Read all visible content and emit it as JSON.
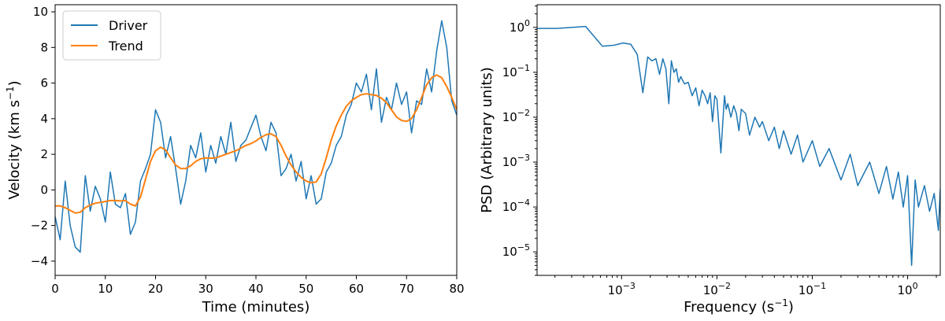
{
  "chart_data": [
    {
      "type": "line",
      "xlabel": "Time (minutes)",
      "ylabel": "Velocity (km s⁻¹)",
      "ylabel_main": "Velocity (km s",
      "ylabel_sup": "−1",
      "ylabel_close": ")",
      "xlim": [
        0,
        80
      ],
      "ylim": [
        -4.8,
        10.4
      ],
      "xticks": [
        0,
        10,
        20,
        30,
        40,
        50,
        60,
        70,
        80
      ],
      "yticks": [
        -4,
        -2,
        0,
        2,
        4,
        6,
        8,
        10
      ],
      "xtick_labels": [
        "0",
        "10",
        "20",
        "30",
        "40",
        "50",
        "60",
        "70",
        "80"
      ],
      "ytick_labels": [
        "−4",
        "−2",
        "0",
        "2",
        "4",
        "6",
        "8",
        "10"
      ],
      "legend_position": "top-left",
      "grid": false,
      "series": [
        {
          "name": "Driver",
          "color": "#1f77b4",
          "x": [
            0,
            1,
            2,
            3,
            4,
            5,
            6,
            7,
            8,
            9,
            10,
            11,
            12,
            13,
            14,
            15,
            16,
            17,
            18,
            19,
            20,
            21,
            22,
            23,
            24,
            25,
            26,
            27,
            28,
            29,
            30,
            31,
            32,
            33,
            34,
            35,
            36,
            37,
            38,
            39,
            40,
            41,
            42,
            43,
            44,
            45,
            46,
            47,
            48,
            49,
            50,
            51,
            52,
            53,
            54,
            55,
            56,
            57,
            58,
            59,
            60,
            61,
            62,
            63,
            64,
            65,
            66,
            67,
            68,
            69,
            70,
            71,
            72,
            73,
            74,
            75,
            76,
            77,
            78,
            79,
            80
          ],
          "y": [
            -1.5,
            -2.8,
            0.5,
            -2.0,
            -3.2,
            -3.5,
            0.8,
            -1.2,
            0.2,
            -0.5,
            -1.8,
            1.0,
            -0.8,
            -1.0,
            -0.2,
            -2.5,
            -1.8,
            0.5,
            1.2,
            2.0,
            4.5,
            3.8,
            1.8,
            3.0,
            1.2,
            -0.8,
            0.5,
            2.5,
            1.8,
            3.2,
            1.0,
            2.5,
            1.5,
            3.0,
            2.0,
            3.8,
            1.6,
            2.5,
            2.8,
            3.5,
            4.2,
            3.0,
            2.2,
            3.8,
            3.2,
            0.8,
            1.2,
            2.0,
            0.5,
            1.6,
            -0.5,
            0.8,
            -0.8,
            -0.5,
            1.0,
            1.5,
            2.5,
            3.0,
            4.2,
            4.8,
            6.0,
            5.5,
            6.5,
            4.5,
            6.8,
            3.8,
            5.2,
            4.5,
            6.0,
            4.8,
            5.5,
            3.2,
            5.0,
            4.8,
            6.8,
            5.5,
            7.8,
            9.5,
            8.0,
            5.0,
            4.2
          ]
        },
        {
          "name": "Trend",
          "color": "#ff7f0e",
          "x": [
            0,
            1,
            2,
            3,
            4,
            5,
            6,
            7,
            8,
            9,
            10,
            11,
            12,
            13,
            14,
            15,
            16,
            17,
            18,
            19,
            20,
            21,
            22,
            23,
            24,
            25,
            26,
            27,
            28,
            29,
            30,
            31,
            32,
            33,
            34,
            35,
            36,
            37,
            38,
            39,
            40,
            41,
            42,
            43,
            44,
            45,
            46,
            47,
            48,
            49,
            50,
            51,
            52,
            53,
            54,
            55,
            56,
            57,
            58,
            59,
            60,
            61,
            62,
            63,
            64,
            65,
            66,
            67,
            68,
            69,
            70,
            71,
            72,
            73,
            74,
            75,
            76,
            77,
            78,
            79,
            80
          ],
          "y": [
            -0.9,
            -0.9,
            -1.0,
            -1.15,
            -1.3,
            -1.25,
            -1.0,
            -0.85,
            -0.75,
            -0.7,
            -0.65,
            -0.6,
            -0.6,
            -0.62,
            -0.6,
            -0.8,
            -0.9,
            -0.4,
            0.6,
            1.6,
            2.2,
            2.4,
            2.25,
            1.8,
            1.4,
            1.2,
            1.2,
            1.35,
            1.6,
            1.75,
            1.8,
            1.78,
            1.8,
            1.9,
            2.0,
            2.1,
            2.2,
            2.35,
            2.5,
            2.6,
            2.75,
            2.95,
            3.1,
            3.15,
            3.0,
            2.5,
            1.9,
            1.4,
            1.0,
            0.7,
            0.5,
            0.4,
            0.45,
            0.9,
            1.8,
            2.8,
            3.6,
            4.2,
            4.7,
            5.0,
            5.2,
            5.35,
            5.4,
            5.35,
            5.3,
            5.15,
            4.9,
            4.5,
            4.1,
            3.9,
            3.85,
            4.0,
            4.5,
            5.2,
            5.9,
            6.3,
            6.45,
            6.3,
            5.8,
            5.2,
            4.5
          ]
        }
      ]
    },
    {
      "type": "line",
      "xlabel_main": "Frequency (s",
      "xlabel_sup": "−1",
      "xlabel_close": ")",
      "ylabel": "PSD (Arbitrary units)",
      "xscale": "log",
      "yscale": "log",
      "xlim": [
        0.00013,
        2.2
      ],
      "ylim": [
        3e-06,
        3.2
      ],
      "xticks": [
        0.001,
        0.01,
        0.1,
        1
      ],
      "yticks": [
        1e-05,
        0.0001,
        0.001,
        0.01,
        0.1,
        1
      ],
      "xtick_labels": [
        {
          "base": "10",
          "exp": "−3"
        },
        {
          "base": "10",
          "exp": "−2"
        },
        {
          "base": "10",
          "exp": "−1"
        },
        {
          "base": "10",
          "exp": "0"
        }
      ],
      "ytick_labels": [
        {
          "base": "10",
          "exp": "−5"
        },
        {
          "base": "10",
          "exp": "−4"
        },
        {
          "base": "10",
          "exp": "−3"
        },
        {
          "base": "10",
          "exp": "−2"
        },
        {
          "base": "10",
          "exp": "−1"
        },
        {
          "base": "10",
          "exp": "0"
        }
      ],
      "grid": false,
      "series": [
        {
          "color": "#1f77b4",
          "x": [
            0.00013,
            0.00021,
            0.00042,
            0.00063,
            0.00083,
            0.00104,
            0.00125,
            0.00146,
            0.00167,
            0.00188,
            0.00208,
            0.00229,
            0.0025,
            0.00271,
            0.00292,
            0.00313,
            0.00333,
            0.00354,
            0.00375,
            0.00396,
            0.00417,
            0.00458,
            0.005,
            0.0055,
            0.006,
            0.0065,
            0.007,
            0.0075,
            0.008,
            0.0085,
            0.009,
            0.0095,
            0.01,
            0.011,
            0.012,
            0.0125,
            0.013,
            0.014,
            0.015,
            0.016,
            0.017,
            0.018,
            0.02,
            0.022,
            0.025,
            0.028,
            0.03,
            0.035,
            0.04,
            0.045,
            0.05,
            0.06,
            0.07,
            0.08,
            0.1,
            0.12,
            0.15,
            0.2,
            0.25,
            0.3,
            0.4,
            0.5,
            0.6,
            0.7,
            0.8,
            0.9,
            1.0,
            1.1,
            1.2,
            1.3,
            1.5,
            1.7,
            1.9,
            2.1,
            2.2
          ],
          "y": [
            0.95,
            0.95,
            1.05,
            0.38,
            0.4,
            0.45,
            0.42,
            0.25,
            0.035,
            0.22,
            0.18,
            0.2,
            0.09,
            0.2,
            0.12,
            0.02,
            0.18,
            0.1,
            0.12,
            0.06,
            0.08,
            0.055,
            0.06,
            0.03,
            0.045,
            0.018,
            0.04,
            0.03,
            0.02,
            0.035,
            0.008,
            0.03,
            0.025,
            0.0016,
            0.03,
            0.015,
            0.02,
            0.01,
            0.018,
            0.012,
            0.005,
            0.015,
            0.012,
            0.004,
            0.01,
            0.006,
            0.008,
            0.003,
            0.006,
            0.002,
            0.005,
            0.0015,
            0.004,
            0.001,
            0.003,
            0.0008,
            0.002,
            0.0004,
            0.0015,
            0.0003,
            0.001,
            0.0002,
            0.0008,
            0.00015,
            0.0006,
            0.0001,
            0.0005,
            5e-06,
            0.0004,
            0.0001,
            0.0003,
            8e-05,
            0.0002,
            3e-05,
            0.00025
          ]
        }
      ]
    }
  ]
}
